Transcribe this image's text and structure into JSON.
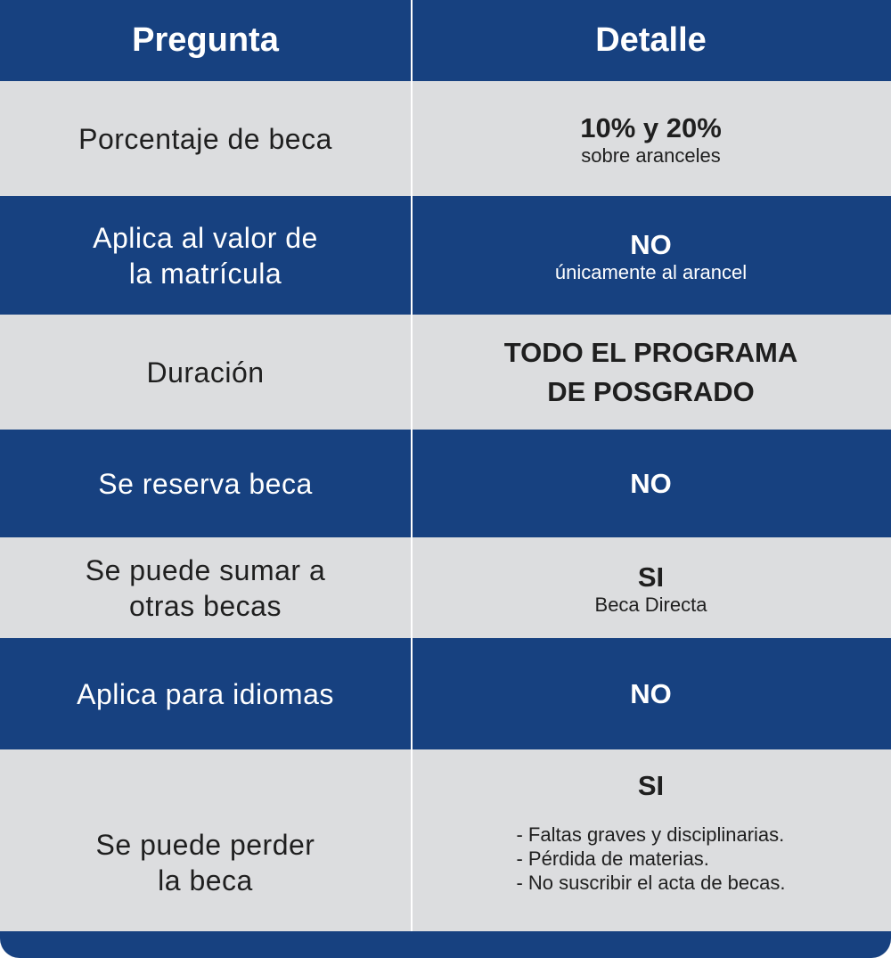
{
  "header": {
    "col1": "Pregunta",
    "col2": "Detalle"
  },
  "rows": [
    {
      "question": "Porcentaje de beca",
      "main": "10% y 20%",
      "sub": "sobre aranceles"
    },
    {
      "question": "Aplica al valor de\nla matrícula",
      "main": "NO",
      "sub": "únicamente al arancel"
    },
    {
      "question": "Duración",
      "main": "TODO EL PROGRAMA\nDE POSGRADO"
    },
    {
      "question": "Se reserva beca",
      "main": "NO"
    },
    {
      "question": "Se puede sumar a\notras becas",
      "main": "SI",
      "sub": "Beca Directa"
    },
    {
      "question": "Aplica para idiomas",
      "main": "NO"
    },
    {
      "question": "Se puede perder\nla beca",
      "main": "SI",
      "list": [
        "- Faltas graves y disciplinarias.",
        "- Pérdida de materias.",
        "- No suscribir el acta de becas."
      ]
    }
  ],
  "colors": {
    "blue": "#174180",
    "gray": "#dcdddf"
  }
}
